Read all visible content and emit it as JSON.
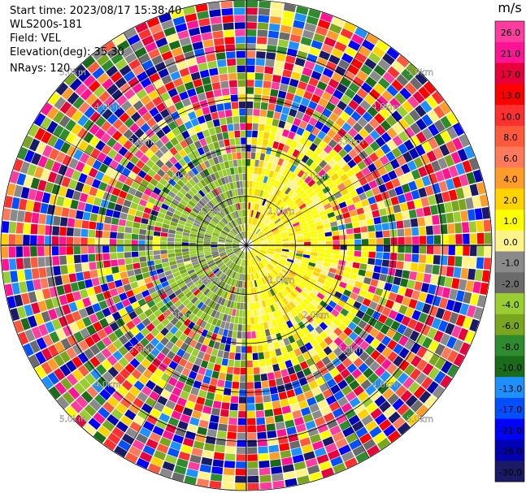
{
  "header": {
    "start_time": "Start time: 2023/08/17 15:38:40",
    "site": "WLS200s-181",
    "field": "Field: VEL",
    "elevation": "Elevation(deg): 35.30",
    "nrays": "NRays: 120"
  },
  "chart_data": {
    "type": "heatmap",
    "projection": "polar-ppi",
    "rays": 120,
    "max_range_km": 5.0,
    "range_rings_km": [
      1.0,
      2.0,
      3.0,
      4.0,
      5.0
    ],
    "ring_labels": {
      "1": "1.0km",
      "2": "2.0km",
      "3": "3.0km",
      "4": "4.0km",
      "5": "5.0km"
    },
    "colorbar": {
      "unit": "m/s",
      "ticks": [
        "26.0",
        "21.0",
        "17.0",
        "13.0",
        "10.0",
        "8.0",
        "6.0",
        "4.0",
        "2.0",
        "1.0",
        "0.0",
        "-1.0",
        "-2.0",
        "-4.0",
        "-6.0",
        "-8.0",
        "-10.0",
        "-13.0",
        "-17.0",
        "-21.0",
        "-26.0",
        "-30.0"
      ],
      "colors": [
        "#ff3d9e",
        "#ff1493",
        "#e8003a",
        "#ff0000",
        "#ff3030",
        "#ff5a3c",
        "#ff7a5a",
        "#ff9c2a",
        "#ffd200",
        "#ffff00",
        "#fff38a",
        "#8a8a8a",
        "#6b6b6b",
        "#9acd32",
        "#7aa51e",
        "#2e8b2e",
        "#1a6b1a",
        "#1e90ff",
        "#0050ff",
        "#0000ff",
        "#0000b4",
        "#1a1a66"
      ]
    },
    "near_field": {
      "west_half": "green and gray (negative, -1 to -4 m/s)",
      "east_half": "yellow (positive, 1 to 4 m/s)"
    },
    "far_field": "noisy mixture of all colors"
  }
}
